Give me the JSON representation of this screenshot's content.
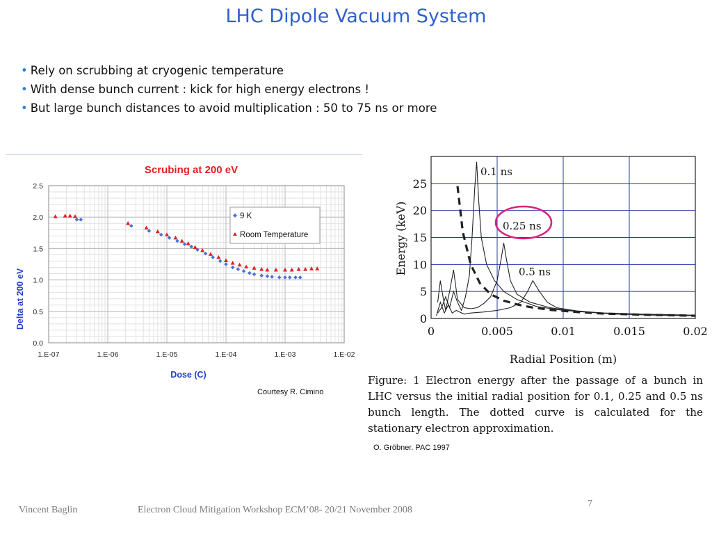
{
  "slide": {
    "title": "LHC Dipole Vacuum System",
    "bullets": [
      "Rely on scrubbing at cryogenic temperature",
      "With dense bunch current : kick for high energy electrons !",
      "But large bunch distances to avoid multiplication : 50 to 75 ns or more"
    ],
    "courtesy": "Courtesy R. Cimino",
    "figure_caption": "Figure: 1  Electron energy after the passage of a bunch in LHC versus the initial radial position for 0.1, 0.25 and 0.5 ns bunch length. The dotted curve is calculated for the stationary electron approximation.",
    "reference": "O. Gröbner. PAC 1997",
    "footer_author": "Vincent Baglin",
    "footer_event": "Electron Cloud Mitigation Workshop ECM’08- 20/21 November 2008",
    "page_number": "7"
  },
  "chart_data": [
    {
      "type": "scatter",
      "title": "Scrubing at 200 eV",
      "xlabel": "Dose (C)",
      "ylabel": "Delta at 200 eV",
      "x_scale": "log",
      "xlim": [
        1e-07,
        0.01
      ],
      "ylim": [
        0,
        2.5
      ],
      "x_tick_labels": [
        "1.E-07",
        "1.E-06",
        "1.E-05",
        "1.E-04",
        "1.E-03",
        "1.E-02"
      ],
      "y_tick_labels": [
        "0.0",
        "0.5",
        "1.0",
        "1.5",
        "2.0",
        "2.5"
      ],
      "legend_position": "top-right",
      "grid": true,
      "series": [
        {
          "name": "9 K",
          "color": "#4a6fdc",
          "marker": "diamond",
          "x": [
            3e-07,
            3.5e-07,
            2.5e-06,
            5e-06,
            8e-06,
            1.1e-05,
            1.5e-05,
            2e-05,
            2.6e-05,
            3.3e-05,
            4.5e-05,
            6e-05,
            8e-05,
            0.0001,
            0.00013,
            0.00016,
            0.0002,
            0.00025,
            0.0003,
            0.0004,
            0.0005,
            0.0006,
            0.0008,
            0.001,
            0.0012,
            0.0015,
            0.0018
          ],
          "y": [
            1.96,
            1.96,
            1.86,
            1.78,
            1.72,
            1.67,
            1.62,
            1.57,
            1.53,
            1.48,
            1.42,
            1.36,
            1.3,
            1.25,
            1.2,
            1.17,
            1.14,
            1.11,
            1.09,
            1.07,
            1.06,
            1.05,
            1.04,
            1.04,
            1.04,
            1.04,
            1.04
          ]
        },
        {
          "name": "Room Temperature",
          "color": "#e02020",
          "marker": "triangle",
          "x": [
            1.3e-07,
            1.9e-07,
            2.3e-07,
            2.8e-07,
            2.2e-06,
            4.5e-06,
            7e-06,
            1e-05,
            1.4e-05,
            1.8e-05,
            2.3e-05,
            3e-05,
            4e-05,
            5.5e-05,
            7.5e-05,
            0.0001,
            0.00013,
            0.00017,
            0.00022,
            0.0003,
            0.0004,
            0.0005,
            0.0007,
            0.001,
            0.0013,
            0.0017,
            0.0022,
            0.0028,
            0.0035
          ],
          "y": [
            2.01,
            2.02,
            2.02,
            2.01,
            1.9,
            1.83,
            1.77,
            1.72,
            1.67,
            1.62,
            1.58,
            1.52,
            1.47,
            1.41,
            1.36,
            1.31,
            1.27,
            1.24,
            1.21,
            1.19,
            1.17,
            1.16,
            1.16,
            1.16,
            1.16,
            1.17,
            1.17,
            1.18,
            1.18
          ]
        }
      ]
    },
    {
      "type": "line",
      "title": "",
      "xlabel": "Radial Position (m)",
      "ylabel": "Energy (keV)",
      "xlim": [
        0,
        0.02
      ],
      "ylim": [
        0,
        30
      ],
      "x_tick_labels": [
        "0",
        "0.005",
        "0.01",
        "0.015",
        "0.02"
      ],
      "y_tick_labels": [
        "0",
        "5",
        "10",
        "15",
        "20",
        "25"
      ],
      "grid": true,
      "series": [
        {
          "name": "0.1 ns",
          "x": [
            0.0005,
            0.0008,
            0.0011,
            0.0014,
            0.0017,
            0.002,
            0.0023,
            0.0026,
            0.0029,
            0.0031,
            0.0033,
            0.00345,
            0.0036,
            0.0038,
            0.0042,
            0.0048,
            0.0055,
            0.0065,
            0.008,
            0.01,
            0.013,
            0.016,
            0.02
          ],
          "y": [
            1,
            2,
            4,
            2,
            5,
            3,
            1.5,
            4,
            8,
            15,
            24,
            29,
            22,
            15,
            10,
            7,
            5,
            3.5,
            2.2,
            1.5,
            1,
            0.7,
            0.5
          ]
        },
        {
          "name": "0.25 ns",
          "x": [
            0.0005,
            0.0007,
            0.0009,
            0.0011,
            0.0014,
            0.0017,
            0.002,
            0.0025,
            0.003,
            0.0035,
            0.004,
            0.0045,
            0.005,
            0.0053,
            0.0055,
            0.0057,
            0.006,
            0.0065,
            0.0075,
            0.009,
            0.011,
            0.014,
            0.017,
            0.02
          ],
          "y": [
            3,
            7,
            4,
            1.5,
            5,
            9,
            3.5,
            2,
            1.8,
            2,
            2.8,
            4,
            7,
            11,
            14,
            11,
            7,
            4.5,
            3,
            2,
            1.3,
            0.8,
            0.6,
            0.5
          ]
        },
        {
          "name": "0.5 ns",
          "x": [
            0.0004,
            0.0007,
            0.001,
            0.0013,
            0.0016,
            0.0019,
            0.0025,
            0.003,
            0.004,
            0.005,
            0.006,
            0.0068,
            0.0073,
            0.0077,
            0.0082,
            0.0088,
            0.0095,
            0.011,
            0.013,
            0.016,
            0.02
          ],
          "y": [
            0.5,
            3,
            1,
            2.5,
            1,
            1.5,
            0.8,
            1,
            1.2,
            1.5,
            2,
            3,
            5,
            7,
            5,
            3,
            2,
            1.4,
            1,
            0.8,
            0.6
          ]
        },
        {
          "name": "stationary approximation",
          "style": "dashed",
          "x": [
            0.002,
            0.0024,
            0.003,
            0.0037,
            0.0045,
            0.0055,
            0.0065,
            0.0075,
            0.009,
            0.011,
            0.013,
            0.016,
            0.02
          ],
          "y": [
            24.5,
            16,
            10,
            6.5,
            4.5,
            3.3,
            2.6,
            2.1,
            1.6,
            1.2,
            0.9,
            0.7,
            0.5
          ]
        }
      ],
      "annotations": [
        "0.1 ns",
        "0.25 ns",
        "0.5 ns"
      ],
      "highlight": {
        "label": "0.25 ns",
        "color": "#d6247f"
      }
    }
  ]
}
